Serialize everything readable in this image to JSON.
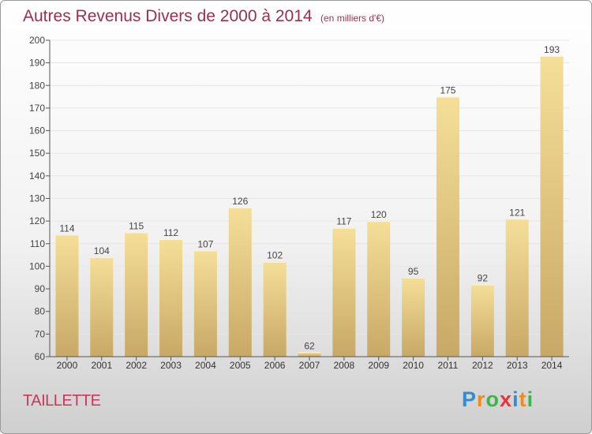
{
  "title": "Autres Revenus Divers de 2000 à 2014",
  "subtitle": "(en milliers d'€)",
  "commune": "TAILLETTE",
  "logo": {
    "text": "Proxiti",
    "letters": [
      "P",
      "r",
      "o",
      "x",
      "i",
      "t",
      "i"
    ],
    "colors": [
      "#2c8fd6",
      "#f08a1c",
      "#3db54a",
      "#e8343a",
      "#2c8fd6",
      "#f08a1c",
      "#3db54a"
    ]
  },
  "colors": {
    "bar_top": "#f5df98",
    "bar_bottom": "#c8a866",
    "title": "#9c2f4e",
    "axis": "#555555",
    "grid": "#e6e6e6"
  },
  "chart_data": {
    "type": "bar",
    "title": "Autres Revenus Divers de 2000 à 2014",
    "subtitle": "(en milliers d'€)",
    "categories": [
      "2000",
      "2001",
      "2002",
      "2003",
      "2004",
      "2005",
      "2006",
      "2007",
      "2008",
      "2009",
      "2010",
      "2011",
      "2012",
      "2013",
      "2014"
    ],
    "values": [
      114,
      104,
      115,
      112,
      107,
      126,
      102,
      62,
      117,
      120,
      95,
      175,
      92,
      121,
      193
    ],
    "ylim": [
      60,
      200
    ],
    "yticks": [
      60,
      70,
      80,
      90,
      100,
      110,
      120,
      130,
      140,
      150,
      160,
      170,
      180,
      190,
      200
    ],
    "grid": true,
    "xlabel": "",
    "ylabel": ""
  }
}
